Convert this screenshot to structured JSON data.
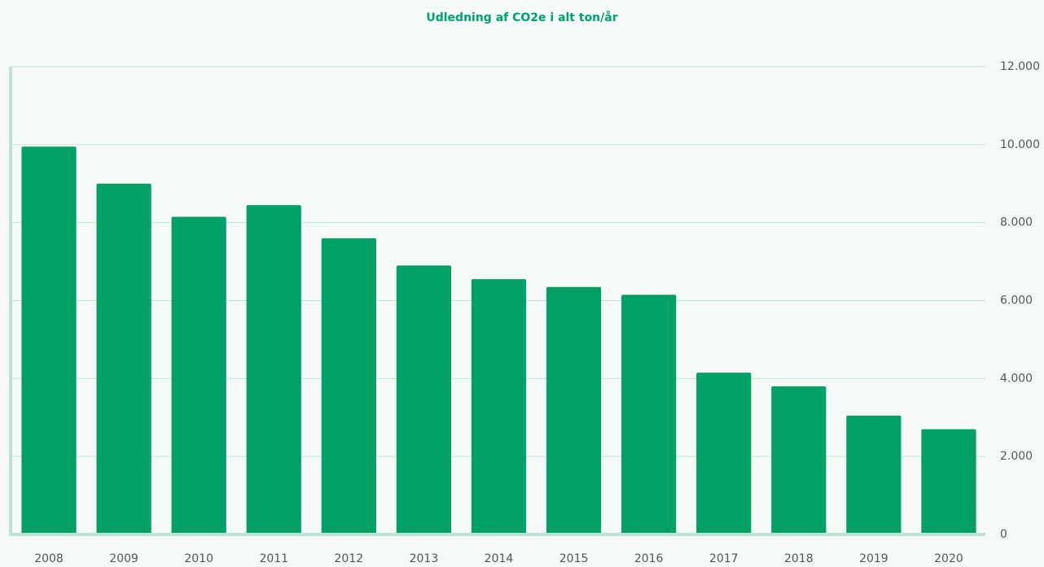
{
  "chart_data": {
    "type": "bar",
    "title": "Udledning af CO2e i alt ton/år",
    "categories": [
      "2008",
      "2009",
      "2010",
      "2011",
      "2012",
      "2013",
      "2014",
      "2015",
      "2016",
      "2017",
      "2018",
      "2019",
      "2020"
    ],
    "values": [
      9950,
      9000,
      8150,
      8450,
      7600,
      6900,
      6550,
      6350,
      6150,
      4150,
      3800,
      3050,
      2700
    ],
    "color": "#00a066",
    "ylim": [
      0,
      12000
    ],
    "yticks": [
      0,
      {
        "value": 2000,
        "label": "2.000"
      },
      {
        "value": 4000,
        "label": "4.000"
      },
      {
        "value": 6000,
        "label": "6.000"
      },
      {
        "value": 8000,
        "label": "8.000"
      },
      {
        "value": 10000,
        "label": "10.000"
      },
      {
        "value": 12000,
        "label": "12.000"
      }
    ],
    "grid": true
  }
}
